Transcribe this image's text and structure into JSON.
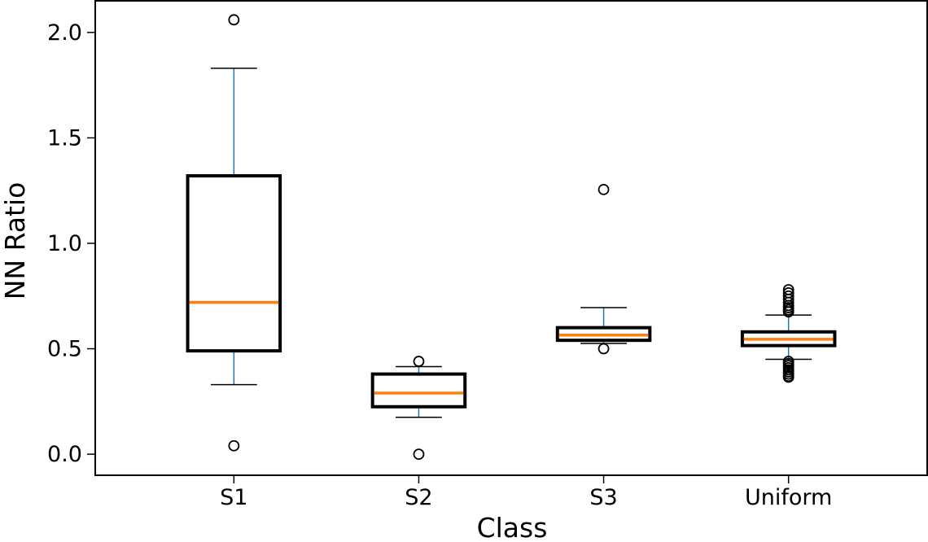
{
  "chart_data": {
    "type": "box",
    "title": "",
    "xlabel": "Class",
    "ylabel": "NN Ratio",
    "ylim": [
      -0.1,
      2.15
    ],
    "yticks": [
      "0.0",
      "0.5",
      "1.0",
      "1.5",
      "2.0"
    ],
    "categories": [
      "S1",
      "S2",
      "S3",
      "Uniform"
    ],
    "grid": false,
    "colors": {
      "box": "#000000",
      "whisker": "#1f77b4",
      "median": "#ff7f0e",
      "cap": "#000000"
    },
    "boxes": [
      {
        "name": "S1",
        "whislo": 0.33,
        "q1": 0.49,
        "med": 0.72,
        "q3": 1.32,
        "whishi": 1.83,
        "fliers": [
          2.06,
          0.04
        ]
      },
      {
        "name": "S2",
        "whislo": 0.175,
        "q1": 0.225,
        "med": 0.29,
        "q3": 0.38,
        "whishi": 0.415,
        "fliers": [
          0.44,
          0.0
        ]
      },
      {
        "name": "S3",
        "whislo": 0.525,
        "q1": 0.54,
        "med": 0.565,
        "q3": 0.6,
        "whishi": 0.695,
        "fliers": [
          1.255,
          0.5
        ]
      },
      {
        "name": "Uniform",
        "whislo": 0.45,
        "q1": 0.515,
        "med": 0.545,
        "q3": 0.58,
        "whishi": 0.66,
        "fliers": [
          0.78,
          0.765,
          0.75,
          0.735,
          0.72,
          0.705,
          0.695,
          0.685,
          0.675,
          0.44,
          0.43,
          0.42,
          0.41,
          0.4,
          0.39,
          0.38,
          0.37,
          0.365
        ]
      }
    ]
  }
}
